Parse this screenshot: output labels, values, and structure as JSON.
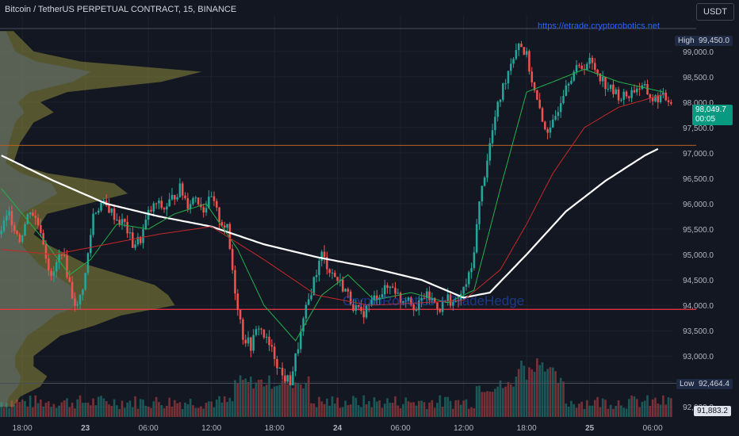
{
  "header": {
    "title": "Bitcoin / TetherUS PERPETUAL CONTRACT, 15, BINANCE",
    "source_link": "https://etrade.cryptorobotics.net",
    "watermark": "CryptoRobotics + TradeHedge",
    "currency": "USDT"
  },
  "price_scale": {
    "high_label": "High",
    "high_value": "99,450.0",
    "low_label": "Low",
    "low_value": "92,464.4",
    "last_price": "98,049.7",
    "countdown": "00:05",
    "extra_value": "91,883.2"
  },
  "colors": {
    "background": "#131722",
    "up": "#26a69a",
    "down": "#ef5350",
    "ma_white": "#ffffff",
    "ma_green": "#22b14c",
    "ma_red": "#c62828",
    "level_line": "#f23645",
    "profile": "#8c8a3a",
    "profile_base": "#5b6b7a",
    "grid": "#1e222d",
    "axis_text": "#b2b5be",
    "last_price_bg": "#089981"
  },
  "chart_data": {
    "type": "candlestick",
    "title": "Bitcoin / TetherUS PERPETUAL CONTRACT, 15, BINANCE",
    "ylim": [
      91800,
      99700
    ],
    "y_ticks": [
      92000,
      92500,
      93000,
      93500,
      94000,
      94500,
      95000,
      95500,
      96000,
      96500,
      97000,
      97500,
      98000,
      98500,
      99000
    ],
    "y_tick_labels": [
      "92,000.0",
      "92,500.0",
      "93,000.0",
      "93,500.0",
      "94,000.0",
      "94,500.0",
      "95,000.0",
      "95,500.0",
      "96,000.0",
      "96,500.0",
      "97,000.0",
      "97,500.0",
      "98,000.0",
      "98,500.0",
      "99,000.0"
    ],
    "x_tick_labels": [
      "18:00",
      "23",
      "06:00",
      "12:00",
      "18:00",
      "24",
      "06:00",
      "12:00",
      "18:00",
      "25",
      "06:00"
    ],
    "x_ticks_bars": [
      8,
      32,
      56,
      80,
      104,
      128,
      152,
      176,
      200,
      224,
      248
    ],
    "bar_count": 256,
    "anchors": [
      [
        0,
        95400
      ],
      [
        4,
        95800
      ],
      [
        8,
        95300
      ],
      [
        12,
        95900
      ],
      [
        16,
        95500
      ],
      [
        20,
        94500
      ],
      [
        24,
        95100
      ],
      [
        28,
        94200
      ],
      [
        30,
        93950
      ],
      [
        33,
        94600
      ],
      [
        36,
        95800
      ],
      [
        39,
        96000
      ],
      [
        42,
        95900
      ],
      [
        45,
        95700
      ],
      [
        48,
        95600
      ],
      [
        51,
        95200
      ],
      [
        54,
        95300
      ],
      [
        57,
        95800
      ],
      [
        60,
        96000
      ],
      [
        63,
        95900
      ],
      [
        66,
        96100
      ],
      [
        69,
        96300
      ],
      [
        72,
        96000
      ],
      [
        75,
        96150
      ],
      [
        78,
        95900
      ],
      [
        81,
        96100
      ],
      [
        84,
        95700
      ],
      [
        87,
        95500
      ],
      [
        90,
        94300
      ],
      [
        93,
        93400
      ],
      [
        96,
        93200
      ],
      [
        99,
        93600
      ],
      [
        102,
        93300
      ],
      [
        105,
        93000
      ],
      [
        108,
        92600
      ],
      [
        111,
        92500
      ],
      [
        114,
        93200
      ],
      [
        117,
        93900
      ],
      [
        120,
        94500
      ],
      [
        123,
        95000
      ],
      [
        126,
        94700
      ],
      [
        129,
        94500
      ],
      [
        132,
        94300
      ],
      [
        135,
        94000
      ],
      [
        138,
        93800
      ],
      [
        141,
        94000
      ],
      [
        144,
        94200
      ],
      [
        147,
        94300
      ],
      [
        150,
        94400
      ],
      [
        153,
        94100
      ],
      [
        156,
        94200
      ],
      [
        159,
        93900
      ],
      [
        162,
        94200
      ],
      [
        165,
        94100
      ],
      [
        168,
        93950
      ],
      [
        171,
        94150
      ],
      [
        174,
        94000
      ],
      [
        177,
        94300
      ],
      [
        180,
        94700
      ],
      [
        183,
        96000
      ],
      [
        186,
        96900
      ],
      [
        189,
        97700
      ],
      [
        192,
        98300
      ],
      [
        195,
        98800
      ],
      [
        198,
        99200
      ],
      [
        201,
        98900
      ],
      [
        204,
        98200
      ],
      [
        207,
        97600
      ],
      [
        210,
        97400
      ],
      [
        213,
        97900
      ],
      [
        216,
        98400
      ],
      [
        219,
        98600
      ],
      [
        222,
        98700
      ],
      [
        225,
        98800
      ],
      [
        228,
        98600
      ],
      [
        231,
        98350
      ],
      [
        234,
        98200
      ],
      [
        237,
        98100
      ],
      [
        240,
        98150
      ],
      [
        243,
        98300
      ],
      [
        246,
        98250
      ],
      [
        249,
        98050
      ],
      [
        252,
        98100
      ],
      [
        255,
        98050
      ]
    ],
    "horizontal_levels": [
      {
        "price": 93920,
        "color": "#f23645",
        "width": 1.2
      },
      {
        "price": 97150,
        "color": "#b8601f",
        "width": 1
      },
      {
        "price": 99450,
        "color": "#4a4e5a",
        "width": 1
      },
      {
        "price": 92464.4,
        "color": "#4a4e5a",
        "width": 1
      }
    ],
    "series": [
      {
        "kind": "ma",
        "color": "#ffffff",
        "anchors": [
          [
            0,
            96950
          ],
          [
            20,
            96450
          ],
          [
            40,
            96000
          ],
          [
            60,
            95750
          ],
          [
            80,
            95550
          ],
          [
            100,
            95200
          ],
          [
            120,
            94950
          ],
          [
            140,
            94750
          ],
          [
            160,
            94500
          ],
          [
            176,
            94150
          ],
          [
            186,
            94250
          ],
          [
            200,
            95000
          ],
          [
            215,
            95850
          ],
          [
            230,
            96450
          ],
          [
            245,
            96950
          ],
          [
            250,
            97080
          ]
        ]
      },
      {
        "kind": "ma",
        "color": "#22b14c",
        "anchors": [
          [
            0,
            96300
          ],
          [
            16,
            95300
          ],
          [
            26,
            94600
          ],
          [
            34,
            94900
          ],
          [
            44,
            95600
          ],
          [
            56,
            95500
          ],
          [
            66,
            95800
          ],
          [
            78,
            96000
          ],
          [
            90,
            95100
          ],
          [
            100,
            94000
          ],
          [
            112,
            93300
          ],
          [
            122,
            94200
          ],
          [
            132,
            94600
          ],
          [
            142,
            94100
          ],
          [
            156,
            94250
          ],
          [
            170,
            94050
          ],
          [
            180,
            94300
          ],
          [
            190,
            96300
          ],
          [
            200,
            98200
          ],
          [
            210,
            98400
          ],
          [
            222,
            98650
          ],
          [
            235,
            98400
          ],
          [
            252,
            98200
          ]
        ]
      },
      {
        "kind": "ma",
        "color": "#c62828",
        "anchors": [
          [
            0,
            95100
          ],
          [
            20,
            95000
          ],
          [
            40,
            95200
          ],
          [
            60,
            95400
          ],
          [
            80,
            95550
          ],
          [
            100,
            94900
          ],
          [
            120,
            94200
          ],
          [
            140,
            94000
          ],
          [
            160,
            94050
          ],
          [
            176,
            94100
          ],
          [
            190,
            94700
          ],
          [
            200,
            95600
          ],
          [
            210,
            96600
          ],
          [
            222,
            97500
          ],
          [
            235,
            97900
          ],
          [
            252,
            98150
          ]
        ]
      }
    ],
    "volume_profile": [
      [
        99400,
        0.02
      ],
      [
        99000,
        0.05
      ],
      [
        98800,
        0.12
      ],
      [
        98600,
        0.3
      ],
      [
        98400,
        0.24
      ],
      [
        98200,
        0.1
      ],
      [
        98000,
        0.06
      ],
      [
        97800,
        0.08
      ],
      [
        97600,
        0.05
      ],
      [
        97200,
        0.03
      ],
      [
        96800,
        0.02
      ],
      [
        96600,
        0.07
      ],
      [
        96400,
        0.17
      ],
      [
        96200,
        0.19
      ],
      [
        96000,
        0.13
      ],
      [
        95800,
        0.07
      ],
      [
        95600,
        0.06
      ],
      [
        95400,
        0.05
      ],
      [
        95200,
        0.07
      ],
      [
        95000,
        0.1
      ],
      [
        94800,
        0.13
      ],
      [
        94600,
        0.18
      ],
      [
        94400,
        0.23
      ],
      [
        94200,
        0.25
      ],
      [
        94000,
        0.26
      ],
      [
        93800,
        0.18
      ],
      [
        93600,
        0.14
      ],
      [
        93400,
        0.09
      ],
      [
        93200,
        0.07
      ],
      [
        93000,
        0.05
      ],
      [
        92800,
        0.05
      ],
      [
        92600,
        0.07
      ],
      [
        92400,
        0.06
      ],
      [
        92200,
        0.03
      ],
      [
        92000,
        0.02
      ]
    ],
    "volume_note": "relative bar heights, peak near bar 200"
  }
}
